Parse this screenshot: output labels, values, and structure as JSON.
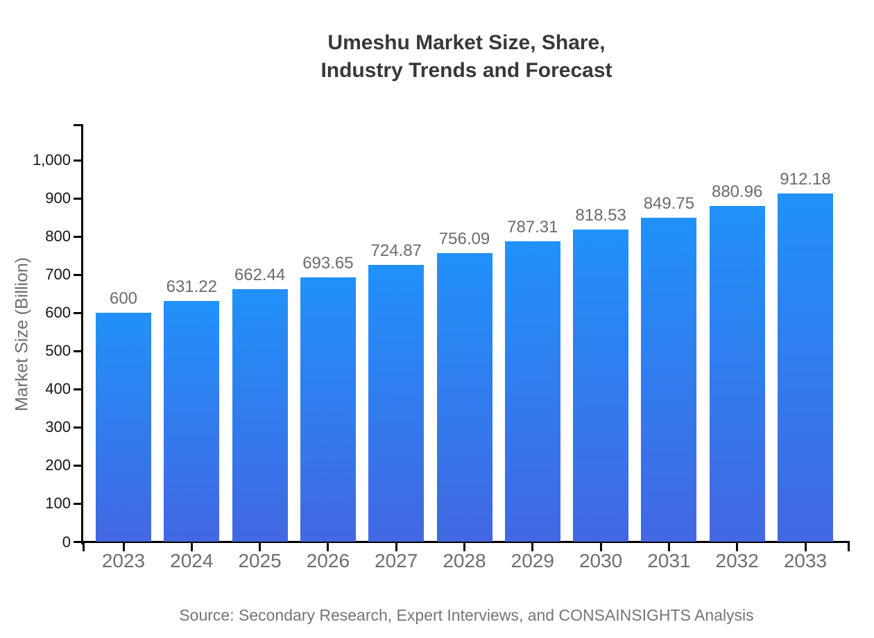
{
  "chart": {
    "title_line1": "Umeshu Market Size, Share,",
    "title_line2": "Industry Trends and Forecast",
    "source": "Source: Secondary Research, Expert Interviews, and CONSAINSIGHTS Analysis",
    "colors": {
      "bar_gradient_top": "#2191fa",
      "bar_gradient_bottom": "#4267e2",
      "axis": "#000000",
      "title_text": "#383838",
      "tick_text": "#151515",
      "muted_text": "#6e6e6e"
    }
  },
  "chart_data": {
    "type": "bar",
    "title": "Umeshu Market Size, Share, Industry Trends and Forecast",
    "xlabel": "",
    "ylabel": "Market Size (Billion)",
    "categories": [
      "2023",
      "2024",
      "2025",
      "2026",
      "2027",
      "2028",
      "2029",
      "2030",
      "2031",
      "2032",
      "2033"
    ],
    "values": [
      600,
      631.22,
      662.44,
      693.65,
      724.87,
      756.09,
      787.31,
      818.53,
      849.75,
      880.96,
      912.18
    ],
    "value_labels": [
      "600",
      "631.22",
      "662.44",
      "693.65",
      "724.87",
      "756.09",
      "787.31",
      "818.53",
      "849.75",
      "880.96",
      "912.18"
    ],
    "ylim": [
      0,
      1000
    ],
    "yticks": [
      0,
      100,
      200,
      300,
      400,
      500,
      600,
      700,
      800,
      900,
      1000
    ],
    "ytick_labels": [
      "0",
      "100",
      "200",
      "300",
      "400",
      "500",
      "600",
      "700",
      "800",
      "900",
      "1,000"
    ],
    "grid": false,
    "legend": null,
    "bar_label_position": "above",
    "source": "Source: Secondary Research, Expert Interviews, and CONSAINSIGHTS Analysis"
  }
}
